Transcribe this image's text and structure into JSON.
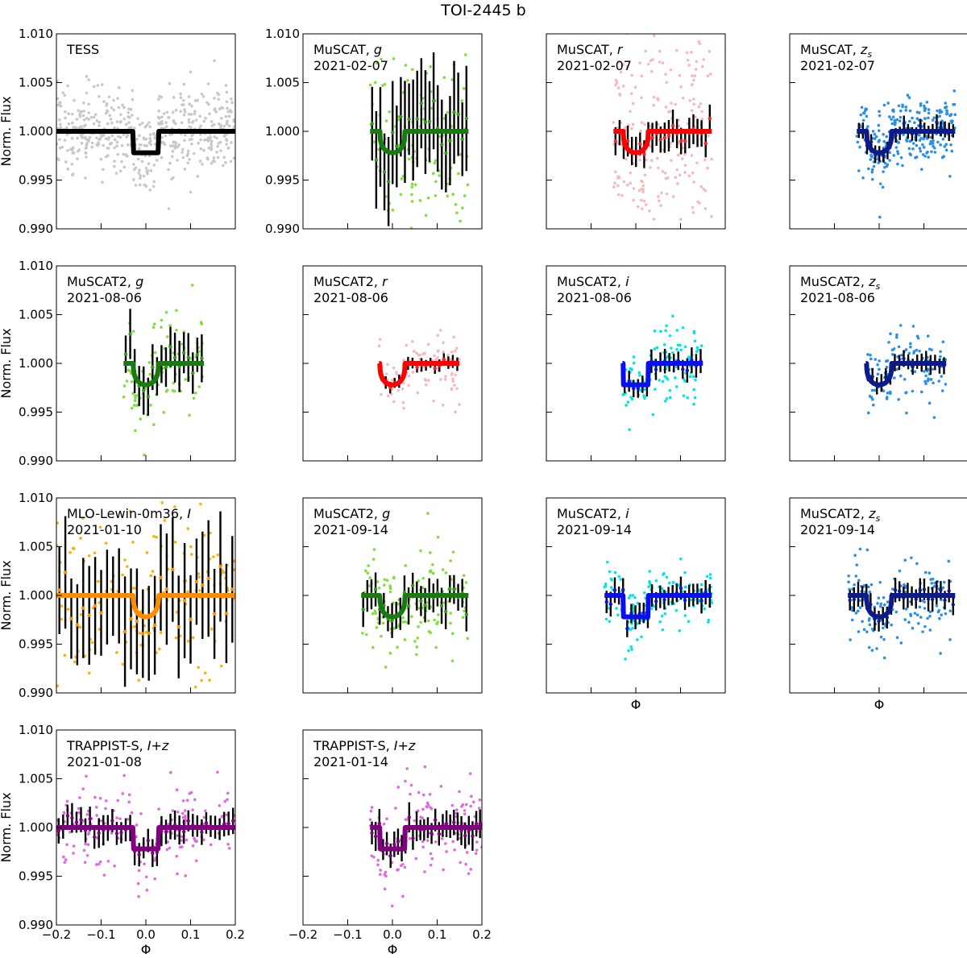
{
  "figure": {
    "title": "TOI-2445 b"
  },
  "chart_data": {
    "type": "scatter",
    "title": "TOI-2445 b",
    "xlabel": "Φ",
    "ylabel": "Norm. Flux",
    "xlim": [
      -0.2,
      0.2
    ],
    "ylim": [
      0.99,
      1.01
    ],
    "xticks": [
      -0.2,
      -0.1,
      0.0,
      0.1,
      0.2
    ],
    "xtick_labels": [
      "−0.2",
      "−0.1",
      "0.0",
      "0.1",
      "0.2"
    ],
    "yticks": [
      0.99,
      0.995,
      1.0,
      1.005,
      1.01
    ],
    "ytick_labels": [
      "0.990",
      "0.995",
      "1.000",
      "1.005",
      "1.010"
    ],
    "transit_model": {
      "t_half": 0.028,
      "depth": 0.0022
    },
    "panels": [
      {
        "instrument": "TESS",
        "band": "",
        "date": "",
        "row": 0,
        "col": 0,
        "model_color": "#000000",
        "raw_color": "#c8c8c8",
        "bin_color": "",
        "model_shape": "box",
        "x_range": [
          -0.2,
          0.2
        ],
        "scatter": 0.0021,
        "n_raw": 520,
        "n_bin": 0,
        "bin_err": 0,
        "seed": 11,
        "show_yticks": true,
        "show_xticks": true,
        "show_xlabel": false,
        "show_ylabel": true
      },
      {
        "instrument": "MuSCAT",
        "band": "g",
        "date": "2021-02-07",
        "row": 0,
        "col": 1,
        "model_color": "#1a7a12",
        "raw_color": "#7fe03c",
        "bin_color": "#2e9a1a",
        "model_shape": "curve",
        "x_range": [
          -0.05,
          0.17
        ],
        "scatter": 0.0055,
        "n_raw": 110,
        "n_bin": 24,
        "bin_err": 0.0045,
        "seed": 21,
        "show_yticks": true,
        "show_xticks": false,
        "show_xlabel": false,
        "show_ylabel": false
      },
      {
        "instrument": "MuSCAT",
        "band": "r",
        "date": "2021-02-07",
        "row": 0,
        "col": 2,
        "model_color": "#ff0000",
        "raw_color": "#f7b8c0",
        "bin_color": "#ff2020",
        "model_shape": "curve",
        "x_range": [
          -0.05,
          0.17
        ],
        "scatter": 0.0062,
        "n_raw": 230,
        "n_bin": 24,
        "bin_err": 0.0014,
        "seed": 31,
        "show_yticks": false,
        "show_xticks": false,
        "show_xlabel": false,
        "show_ylabel": false
      },
      {
        "instrument": "MuSCAT",
        "band": "z_s",
        "date": "2021-02-07",
        "row": 0,
        "col": 3,
        "model_color": "#0d1a8a",
        "raw_color": "#2a8fe8",
        "bin_color": "#0d1a8a",
        "model_shape": "curve",
        "x_range": [
          -0.05,
          0.17
        ],
        "scatter": 0.0018,
        "n_raw": 260,
        "n_bin": 24,
        "bin_err": 0.0008,
        "seed": 41,
        "show_yticks": false,
        "show_xticks": false,
        "show_xlabel": false,
        "show_ylabel": false
      },
      {
        "instrument": "MuSCAT2",
        "band": "g",
        "date": "2021-08-06",
        "row": 1,
        "col": 0,
        "model_color": "#1a7a12",
        "raw_color": "#7fe03c",
        "bin_color": "#2e9a1a",
        "model_shape": "curve",
        "x_range": [
          -0.05,
          0.13
        ],
        "scatter": 0.0028,
        "n_raw": 90,
        "n_bin": 18,
        "bin_err": 0.0022,
        "seed": 51,
        "show_yticks": true,
        "show_xticks": false,
        "show_xlabel": false,
        "show_ylabel": true
      },
      {
        "instrument": "MuSCAT2",
        "band": "r",
        "date": "2021-08-06",
        "row": 1,
        "col": 1,
        "model_color": "#ff0000",
        "raw_color": "#f7b8c0",
        "bin_color": "#ff2020",
        "model_shape": "curve",
        "x_range": [
          -0.03,
          0.15
        ],
        "scatter": 0.0016,
        "n_raw": 110,
        "n_bin": 18,
        "bin_err": 0.0006,
        "seed": 61,
        "show_yticks": false,
        "show_xticks": false,
        "show_xlabel": false,
        "show_ylabel": false
      },
      {
        "instrument": "MuSCAT2",
        "band": "i",
        "date": "2021-08-06",
        "row": 1,
        "col": 2,
        "model_color": "#0a0ff0",
        "raw_color": "#00e5e5",
        "bin_color": "#0a0ff0",
        "model_shape": "box",
        "x_range": [
          -0.03,
          0.15
        ],
        "scatter": 0.0022,
        "n_raw": 120,
        "n_bin": 18,
        "bin_err": 0.0011,
        "seed": 71,
        "show_yticks": false,
        "show_xticks": false,
        "show_xlabel": false,
        "show_ylabel": false
      },
      {
        "instrument": "MuSCAT2",
        "band": "z_s",
        "date": "2021-08-06",
        "row": 1,
        "col": 3,
        "model_color": "#0d1a8a",
        "raw_color": "#2a8fe8",
        "bin_color": "#0d1a8a",
        "model_shape": "curve",
        "x_range": [
          -0.03,
          0.15
        ],
        "scatter": 0.0019,
        "n_raw": 120,
        "n_bin": 18,
        "bin_err": 0.0009,
        "seed": 81,
        "show_yticks": false,
        "show_xticks": false,
        "show_xlabel": false,
        "show_ylabel": false
      },
      {
        "instrument": "MLO-Lewin-0m36",
        "band": "I",
        "date": "2021-01-10",
        "row": 2,
        "col": 0,
        "model_color": "#ff8c00",
        "raw_color": "#ffb000",
        "bin_color": "#ff8c00",
        "model_shape": "curve",
        "x_range": [
          -0.2,
          0.2
        ],
        "scatter": 0.0055,
        "n_raw": 150,
        "n_bin": 30,
        "bin_err": 0.005,
        "seed": 91,
        "show_yticks": true,
        "show_xticks": false,
        "show_xlabel": false,
        "show_ylabel": true
      },
      {
        "instrument": "MuSCAT2",
        "band": "g",
        "date": "2021-09-14",
        "row": 2,
        "col": 1,
        "model_color": "#1a7a12",
        "raw_color": "#7fe03c",
        "bin_color": "#2e9a1a",
        "model_shape": "curve",
        "x_range": [
          -0.07,
          0.17
        ],
        "scatter": 0.0026,
        "n_raw": 130,
        "n_bin": 26,
        "bin_err": 0.0016,
        "seed": 101,
        "show_yticks": false,
        "show_xticks": false,
        "show_xlabel": false,
        "show_ylabel": false
      },
      {
        "instrument": "MuSCAT2",
        "band": "i",
        "date": "2021-09-14",
        "row": 2,
        "col": 2,
        "model_color": "#0a0ff0",
        "raw_color": "#00e5e5",
        "bin_color": "#0a0ff0",
        "model_shape": "box",
        "x_range": [
          -0.07,
          0.17
        ],
        "scatter": 0.0016,
        "n_raw": 150,
        "n_bin": 26,
        "bin_err": 0.0011,
        "seed": 111,
        "show_yticks": false,
        "show_xticks": true,
        "show_xlabel": true,
        "show_ylabel": false
      },
      {
        "instrument": "MuSCAT2",
        "band": "z_s",
        "date": "2021-09-14",
        "row": 2,
        "col": 3,
        "model_color": "#0d1a8a",
        "raw_color": "#2a8fe8",
        "bin_color": "#0d1a8a",
        "model_shape": "curve",
        "x_range": [
          -0.07,
          0.17
        ],
        "scatter": 0.0022,
        "n_raw": 150,
        "n_bin": 26,
        "bin_err": 0.0011,
        "seed": 121,
        "show_yticks": false,
        "show_xticks": true,
        "show_xlabel": true,
        "show_ylabel": false
      },
      {
        "instrument": "TRAPPIST-S",
        "band": "I+z",
        "date": "2021-01-08",
        "row": 3,
        "col": 0,
        "model_color": "#800080",
        "raw_color": "#e06be0",
        "bin_color": "#800080",
        "model_shape": "box",
        "x_range": [
          -0.2,
          0.2
        ],
        "scatter": 0.0022,
        "n_raw": 170,
        "n_bin": 40,
        "bin_err": 0.0013,
        "seed": 131,
        "show_yticks": true,
        "show_xticks": true,
        "show_xlabel": true,
        "show_ylabel": true
      },
      {
        "instrument": "TRAPPIST-S",
        "band": "I+z",
        "date": "2021-01-14",
        "row": 3,
        "col": 1,
        "model_color": "#800080",
        "raw_color": "#e06be0",
        "bin_color": "#800080",
        "model_shape": "box",
        "x_range": [
          -0.05,
          0.2
        ],
        "scatter": 0.0022,
        "n_raw": 130,
        "n_bin": 30,
        "bin_err": 0.0013,
        "seed": 141,
        "show_yticks": false,
        "show_xticks": true,
        "show_xlabel": true,
        "show_ylabel": false
      }
    ]
  }
}
